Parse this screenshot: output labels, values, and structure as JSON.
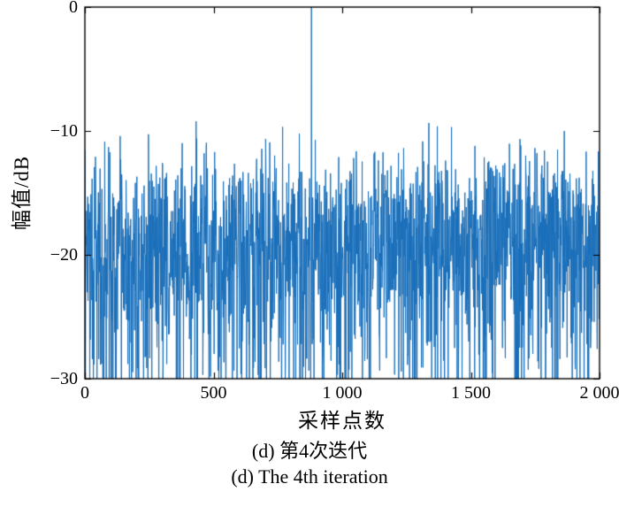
{
  "chart_data": {
    "type": "line",
    "title": "",
    "xlabel": "采样点数",
    "ylabel": "幅值/dB",
    "caption_zh": "(d) 第4次迭代",
    "caption_en": "(d) The 4th iteration",
    "xlim": [
      0,
      2000
    ],
    "ylim": [
      -30,
      0
    ],
    "x_ticks": [
      0,
      500,
      1000,
      1500,
      2000
    ],
    "x_tick_labels": [
      "0",
      "500",
      "1 000",
      "1 500",
      "2 000"
    ],
    "y_ticks": [
      0,
      -10,
      -20,
      -30
    ],
    "y_tick_labels": [
      "0",
      "−10",
      "−20",
      "−30"
    ],
    "grid": false,
    "legend": null,
    "line_color": "#1a6fba",
    "frame_color": "#000000",
    "background": "#ffffff",
    "series_description": "Dense noise-like amplitude trace fluctuating mostly between −30 dB and −8 dB around a ≈−20 dB floor, with a single dominant spike reaching 0 dB near sample 880",
    "generator": {
      "model": "rayleigh-db-noise",
      "n_points": 2000,
      "offset_db": -18,
      "seed": 7,
      "spike_index": 880,
      "spike_value_db": 0
    }
  }
}
